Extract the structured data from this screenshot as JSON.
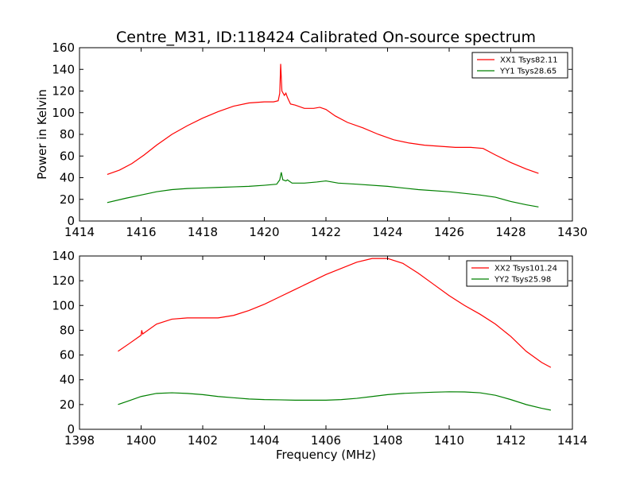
{
  "title": "Centre_M31, ID:118424 Calibrated On-source spectrum",
  "colors": {
    "xx": "#ff0000",
    "yy": "#008000",
    "axis": "#000000"
  },
  "chart_data": [
    {
      "type": "line",
      "xlabel": "",
      "ylabel": "Power in Kelvin",
      "xlim": [
        1414,
        1430
      ],
      "ylim": [
        0,
        160
      ],
      "xticks": [
        "1414",
        "1416",
        "1418",
        "1420",
        "1422",
        "1424",
        "1426",
        "1428",
        "1430"
      ],
      "yticks": [
        "0",
        "20",
        "40",
        "60",
        "80",
        "100",
        "120",
        "140",
        "160"
      ],
      "legend_position": "upper right",
      "series": [
        {
          "name": "XX1 Tsys82.11",
          "color": "#ff0000",
          "points": [
            [
              1414.9,
              43
            ],
            [
              1415.3,
              47
            ],
            [
              1415.7,
              53
            ],
            [
              1416.1,
              61
            ],
            [
              1416.5,
              70
            ],
            [
              1417.0,
              80
            ],
            [
              1417.5,
              88
            ],
            [
              1418.0,
              95
            ],
            [
              1418.5,
              101
            ],
            [
              1419.0,
              106
            ],
            [
              1419.5,
              109
            ],
            [
              1420.0,
              110
            ],
            [
              1420.3,
              110
            ],
            [
              1420.45,
              111
            ],
            [
              1420.5,
              118
            ],
            [
              1420.53,
              145
            ],
            [
              1420.57,
              120
            ],
            [
              1420.65,
              116
            ],
            [
              1420.7,
              118
            ],
            [
              1420.75,
              114
            ],
            [
              1420.85,
              108
            ],
            [
              1421.0,
              107
            ],
            [
              1421.3,
              104
            ],
            [
              1421.6,
              104
            ],
            [
              1421.8,
              105
            ],
            [
              1422.0,
              103
            ],
            [
              1422.3,
              97
            ],
            [
              1422.7,
              91
            ],
            [
              1423.2,
              86
            ],
            [
              1423.7,
              80
            ],
            [
              1424.2,
              75
            ],
            [
              1424.7,
              72
            ],
            [
              1425.2,
              70
            ],
            [
              1425.7,
              69
            ],
            [
              1426.2,
              68
            ],
            [
              1426.7,
              68
            ],
            [
              1427.1,
              67
            ],
            [
              1427.5,
              61
            ],
            [
              1428.0,
              54
            ],
            [
              1428.5,
              48
            ],
            [
              1428.9,
              44
            ]
          ]
        },
        {
          "name": "YY1 Tsys28.65",
          "color": "#008000",
          "points": [
            [
              1414.9,
              17
            ],
            [
              1415.5,
              21
            ],
            [
              1416.0,
              24
            ],
            [
              1416.5,
              27
            ],
            [
              1417.0,
              29
            ],
            [
              1417.5,
              30
            ],
            [
              1418.0,
              30.5
            ],
            [
              1418.5,
              31
            ],
            [
              1419.0,
              31.5
            ],
            [
              1419.5,
              32
            ],
            [
              1420.0,
              33
            ],
            [
              1420.4,
              34
            ],
            [
              1420.5,
              38
            ],
            [
              1420.55,
              45
            ],
            [
              1420.6,
              38
            ],
            [
              1420.7,
              37
            ],
            [
              1420.75,
              38
            ],
            [
              1420.9,
              35
            ],
            [
              1421.3,
              35
            ],
            [
              1421.7,
              36
            ],
            [
              1422.0,
              37
            ],
            [
              1422.4,
              35
            ],
            [
              1423.0,
              34
            ],
            [
              1424.0,
              32
            ],
            [
              1425.0,
              29
            ],
            [
              1426.0,
              27
            ],
            [
              1427.0,
              24
            ],
            [
              1427.5,
              22
            ],
            [
              1428.0,
              18
            ],
            [
              1428.5,
              15
            ],
            [
              1428.9,
              13
            ]
          ]
        }
      ]
    },
    {
      "type": "line",
      "xlabel": "Frequency (MHz)",
      "ylabel": "",
      "xlim": [
        1398,
        1414
      ],
      "ylim": [
        0,
        140
      ],
      "xticks": [
        "1398",
        "1400",
        "1402",
        "1404",
        "1406",
        "1408",
        "1410",
        "1412",
        "1414"
      ],
      "yticks": [
        "0",
        "20",
        "40",
        "60",
        "80",
        "100",
        "120",
        "140"
      ],
      "legend_position": "upper right",
      "series": [
        {
          "name": "XX2 Tsys101.24",
          "color": "#ff0000",
          "points": [
            [
              1399.25,
              63
            ],
            [
              1399.6,
              69
            ],
            [
              1400.0,
              76
            ],
            [
              1400.02,
              80
            ],
            [
              1400.05,
              77
            ],
            [
              1400.5,
              85
            ],
            [
              1401.0,
              89
            ],
            [
              1401.5,
              90
            ],
            [
              1402.0,
              90
            ],
            [
              1402.5,
              90
            ],
            [
              1403.0,
              92
            ],
            [
              1403.5,
              96
            ],
            [
              1404.0,
              101
            ],
            [
              1404.5,
              107
            ],
            [
              1405.0,
              113
            ],
            [
              1405.5,
              119
            ],
            [
              1406.0,
              125
            ],
            [
              1406.5,
              130
            ],
            [
              1407.0,
              135
            ],
            [
              1407.5,
              138
            ],
            [
              1408.0,
              138
            ],
            [
              1408.5,
              134
            ],
            [
              1409.0,
              126
            ],
            [
              1409.5,
              117
            ],
            [
              1410.0,
              108
            ],
            [
              1410.5,
              100
            ],
            [
              1411.0,
              93
            ],
            [
              1411.5,
              85
            ],
            [
              1412.0,
              75
            ],
            [
              1412.5,
              63
            ],
            [
              1413.0,
              54
            ],
            [
              1413.3,
              50
            ]
          ]
        },
        {
          "name": "YY2 Tsys25.98",
          "color": "#008000",
          "points": [
            [
              1399.25,
              20
            ],
            [
              1399.6,
              23
            ],
            [
              1400.0,
              26.5
            ],
            [
              1400.5,
              29
            ],
            [
              1401.0,
              29.5
            ],
            [
              1401.5,
              29
            ],
            [
              1402.0,
              28
            ],
            [
              1402.5,
              26.5
            ],
            [
              1403.0,
              25.5
            ],
            [
              1403.5,
              24.5
            ],
            [
              1404.0,
              24
            ],
            [
              1404.5,
              23.8
            ],
            [
              1405.0,
              23.5
            ],
            [
              1405.5,
              23.5
            ],
            [
              1406.0,
              23.5
            ],
            [
              1406.5,
              24
            ],
            [
              1407.0,
              25
            ],
            [
              1407.5,
              26.5
            ],
            [
              1408.0,
              28
            ],
            [
              1408.5,
              29
            ],
            [
              1409.0,
              29.5
            ],
            [
              1409.5,
              30
            ],
            [
              1410.0,
              30.3
            ],
            [
              1410.5,
              30.2
            ],
            [
              1411.0,
              29.5
            ],
            [
              1411.5,
              27.5
            ],
            [
              1412.0,
              24
            ],
            [
              1412.5,
              20
            ],
            [
              1413.0,
              17
            ],
            [
              1413.3,
              15.5
            ]
          ]
        }
      ]
    }
  ]
}
